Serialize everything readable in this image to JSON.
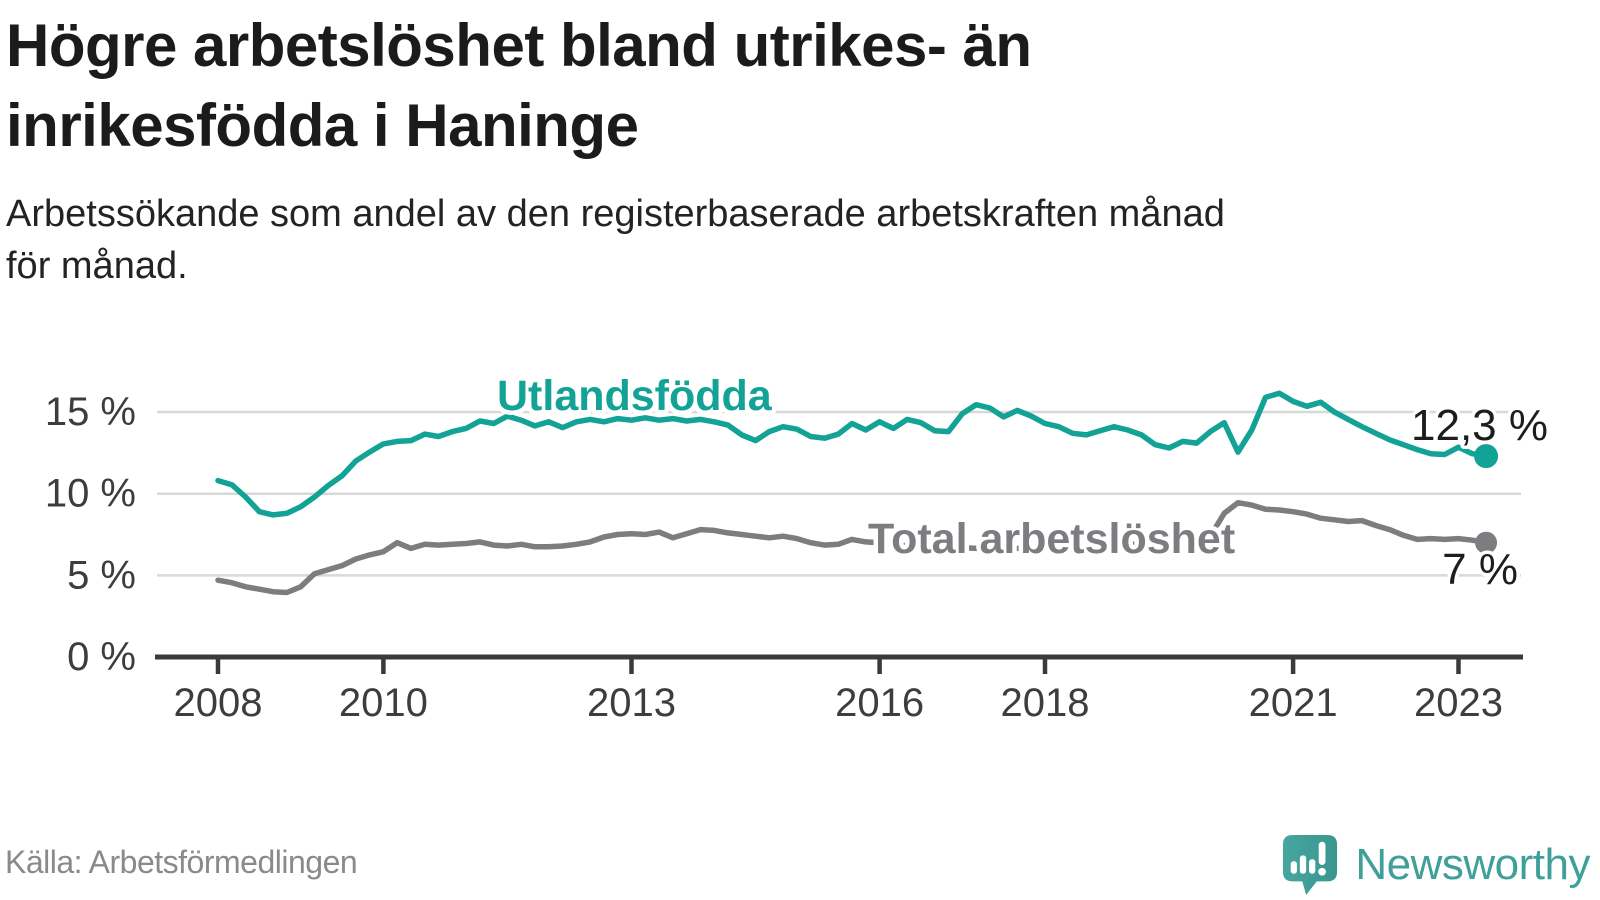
{
  "header": {
    "title_lines": [
      "Högre arbetslöshet bland utrikes- än",
      "inrikesfödda i Haninge"
    ],
    "subtitle_lines": [
      "Arbetssökande som andel av den registerbaserade arbetskraften månad",
      "för månad."
    ]
  },
  "footer": {
    "source": "Källa: Arbetsförmedlingen",
    "logo_text": "Newsworthy"
  },
  "colors": {
    "accent_teal": "#12a296",
    "line_gray": "#7e7c80",
    "grid": "#d8d8d8",
    "axis": "#3a3a3a",
    "tick_text": "#3d3d3d",
    "value_text": "#1d1d1d",
    "source_text": "#8a8a8a",
    "logo_teal": "#3f9f99"
  },
  "chart_data": {
    "type": "line",
    "title": "Högre arbetslöshet bland utrikes- än inrikesfödda i Haninge",
    "subtitle": "Arbetssökande som andel av den registerbaserade arbetskraften månad för månad.",
    "unit": "%",
    "grid": "horizontal",
    "legend_position": "inline-labels",
    "x_start": 2008.0,
    "x_step_years": 0.1666667,
    "xlim": [
      2007.25,
      2023.8
    ],
    "ylim": [
      0,
      17
    ],
    "y_ticks": [
      {
        "value": 0,
        "label": "0 %"
      },
      {
        "value": 5,
        "label": "5 %"
      },
      {
        "value": 10,
        "label": "10 %"
      },
      {
        "value": 15,
        "label": "15 %"
      }
    ],
    "x_ticks": [
      {
        "value": 2008,
        "label": "2008"
      },
      {
        "value": 2010,
        "label": "2010"
      },
      {
        "value": 2013,
        "label": "2013"
      },
      {
        "value": 2016,
        "label": "2016"
      },
      {
        "value": 2018,
        "label": "2018"
      },
      {
        "value": 2021,
        "label": "2021"
      },
      {
        "value": 2023,
        "label": "2023"
      }
    ],
    "series": [
      {
        "id": "utlandsfodda",
        "name": "Utlandsfödda",
        "color": "#12a296",
        "end_value": 12.3,
        "end_label": "12,3 %",
        "values": [
          10.8,
          10.55,
          9.8,
          8.9,
          8.7,
          8.8,
          9.2,
          9.8,
          10.5,
          11.1,
          12.0,
          12.55,
          13.05,
          13.2,
          13.25,
          13.65,
          13.5,
          13.8,
          14.0,
          14.45,
          14.3,
          14.75,
          14.5,
          14.15,
          14.4,
          14.05,
          14.4,
          14.55,
          14.4,
          14.6,
          14.5,
          14.65,
          14.5,
          14.6,
          14.45,
          14.55,
          14.4,
          14.2,
          13.6,
          13.25,
          13.8,
          14.1,
          13.95,
          13.5,
          13.4,
          13.65,
          14.3,
          13.9,
          14.4,
          14.0,
          14.55,
          14.35,
          13.85,
          13.8,
          14.9,
          15.45,
          15.25,
          14.7,
          15.1,
          14.75,
          14.3,
          14.1,
          13.7,
          13.6,
          13.85,
          14.1,
          13.9,
          13.6,
          13.0,
          12.8,
          13.2,
          13.1,
          13.8,
          14.35,
          12.55,
          13.9,
          15.9,
          16.15,
          15.65,
          15.35,
          15.6,
          15.0,
          14.55,
          14.1,
          13.7,
          13.3,
          13.0,
          12.7,
          12.45,
          12.4,
          12.85,
          12.45,
          12.3
        ]
      },
      {
        "id": "total-arbetsloshet",
        "name": "Total arbetslöshet",
        "color": "#7e7c80",
        "end_value": 7,
        "end_label": "7 %",
        "values": [
          4.7,
          4.55,
          4.3,
          4.15,
          4.0,
          3.95,
          4.3,
          5.1,
          5.35,
          5.6,
          6.0,
          6.25,
          6.45,
          7.0,
          6.65,
          6.9,
          6.85,
          6.9,
          6.95,
          7.05,
          6.85,
          6.8,
          6.9,
          6.75,
          6.75,
          6.8,
          6.9,
          7.05,
          7.35,
          7.5,
          7.55,
          7.5,
          7.65,
          7.3,
          7.55,
          7.8,
          7.75,
          7.6,
          7.5,
          7.4,
          7.3,
          7.4,
          7.25,
          7.0,
          6.85,
          6.9,
          7.2,
          7.05,
          7.0,
          6.9,
          6.8,
          6.75,
          6.7,
          6.7,
          6.7,
          6.65,
          6.6,
          6.6,
          6.65,
          6.7,
          6.7,
          6.75,
          6.7,
          6.75,
          6.8,
          6.85,
          6.9,
          6.9,
          6.95,
          7.0,
          7.05,
          7.15,
          7.4,
          8.8,
          9.45,
          9.3,
          9.05,
          9.0,
          8.9,
          8.75,
          8.5,
          8.4,
          8.3,
          8.35,
          8.05,
          7.8,
          7.45,
          7.2,
          7.25,
          7.2,
          7.25,
          7.15,
          7.0
        ]
      }
    ]
  }
}
